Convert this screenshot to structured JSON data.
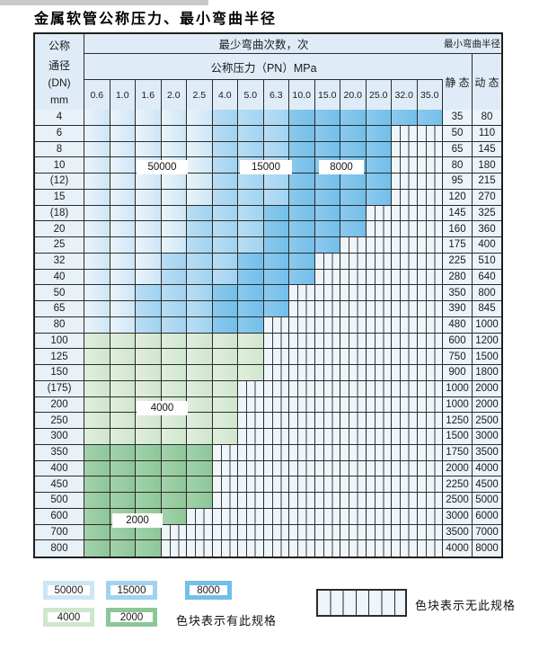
{
  "title": "金属软管公称压力、最小弯曲半径",
  "colors": {
    "band_50000": "#cde6f6",
    "band_15000": "#a0d3f0",
    "band_8000": "#72bfea",
    "band_4000": "#cfe6cd",
    "band_2000": "#8dc798",
    "hatch_bg": "#eef5fb",
    "header_bg": "#dfecf7",
    "grid_line": "#2b2b2b"
  },
  "table": {
    "header": {
      "dn_label_lines": [
        "公称",
        "通径",
        "(DN)",
        "mm"
      ],
      "bend_times_label": "最少弯曲次数，次",
      "pressure_label": "公称压力（PN）MPa",
      "pressure_columns": [
        "0.6",
        "1.0",
        "1.6",
        "2.0",
        "2.5",
        "4.0",
        "5.0",
        "6.3",
        "10.0",
        "15.0",
        "20.0",
        "25.0",
        "32.0",
        "35.0"
      ],
      "radius_label": "最小弯曲半径",
      "static_label": "静 态",
      "dynamic_label": "动 态"
    },
    "pattern_key": {
      "a": "50000 cycles band",
      "b": "15000 cycles band",
      "c": "8000 cycles band",
      "d": "4000 cycles band",
      "e": "2000 cycles band",
      ".": "no specification (hatched)"
    },
    "rows": [
      {
        "dn": "4",
        "pattern": "aaaaabbbcccccc",
        "static": "35",
        "dynamic": "80"
      },
      {
        "dn": "6",
        "pattern": "aaaaabbbcccc..",
        "static": "50",
        "dynamic": "110"
      },
      {
        "dn": "8",
        "pattern": "aaaaabbbcccc..",
        "static": "65",
        "dynamic": "145"
      },
      {
        "dn": "10",
        "pattern": "aaaaabbbcccc..",
        "static": "80",
        "dynamic": "180"
      },
      {
        "dn": "(12)",
        "pattern": "aaaaabbbcccc..",
        "static": "95",
        "dynamic": "215"
      },
      {
        "dn": "15",
        "pattern": "aaaaabbbcccc..",
        "static": "120",
        "dynamic": "270"
      },
      {
        "dn": "(18)",
        "pattern": "aaaabbbcccc...",
        "static": "145",
        "dynamic": "325"
      },
      {
        "dn": "20",
        "pattern": "aaaabbbcccc...",
        "static": "160",
        "dynamic": "360"
      },
      {
        "dn": "25",
        "pattern": "aaaabbbccc....",
        "static": "175",
        "dynamic": "400"
      },
      {
        "dn": "32",
        "pattern": "aaabbbccc.....",
        "static": "225",
        "dynamic": "510"
      },
      {
        "dn": "40",
        "pattern": "aaabbbccc.....",
        "static": "280",
        "dynamic": "640"
      },
      {
        "dn": "50",
        "pattern": "aabbbccc......",
        "static": "350",
        "dynamic": "800"
      },
      {
        "dn": "65",
        "pattern": "aabbbccc......",
        "static": "390",
        "dynamic": "845"
      },
      {
        "dn": "80",
        "pattern": "aabbbcc.......",
        "static": "480",
        "dynamic": "1000"
      },
      {
        "dn": "100",
        "pattern": "ddddddd.......",
        "static": "600",
        "dynamic": "1200"
      },
      {
        "dn": "125",
        "pattern": "ddddddd.......",
        "static": "750",
        "dynamic": "1500"
      },
      {
        "dn": "150",
        "pattern": "ddddddd.......",
        "static": "900",
        "dynamic": "1800"
      },
      {
        "dn": "(175)",
        "pattern": "dddddd........",
        "static": "1000",
        "dynamic": "2000"
      },
      {
        "dn": "200",
        "pattern": "dddddd........",
        "static": "1000",
        "dynamic": "2000"
      },
      {
        "dn": "250",
        "pattern": "dddddd........",
        "static": "1250",
        "dynamic": "2500"
      },
      {
        "dn": "300",
        "pattern": "dddddd........",
        "static": "1500",
        "dynamic": "3000"
      },
      {
        "dn": "350",
        "pattern": "eeeee.........",
        "static": "1750",
        "dynamic": "3500"
      },
      {
        "dn": "400",
        "pattern": "eeeee.........",
        "static": "2000",
        "dynamic": "4000"
      },
      {
        "dn": "450",
        "pattern": "eeeee.........",
        "static": "2250",
        "dynamic": "4500"
      },
      {
        "dn": "500",
        "pattern": "eeeee.........",
        "static": "2500",
        "dynamic": "5000"
      },
      {
        "dn": "600",
        "pattern": "eeee..........",
        "static": "3000",
        "dynamic": "6000"
      },
      {
        "dn": "700",
        "pattern": "eee...........",
        "static": "3500",
        "dynamic": "7000"
      },
      {
        "dn": "800",
        "pattern": "eee...........",
        "static": "4000",
        "dynamic": "8000"
      }
    ],
    "overlay_labels": [
      {
        "text": "50000"
      },
      {
        "text": "15000"
      },
      {
        "text": "8000"
      },
      {
        "text": "4000"
      },
      {
        "text": "2000"
      }
    ]
  },
  "legend": {
    "items": [
      {
        "value": "50000"
      },
      {
        "value": "15000"
      },
      {
        "value": "8000"
      },
      {
        "value": "4000"
      },
      {
        "value": "2000"
      }
    ],
    "has_spec_text": "色块表示有此规格",
    "no_spec_text": "色块表示无此规格"
  }
}
